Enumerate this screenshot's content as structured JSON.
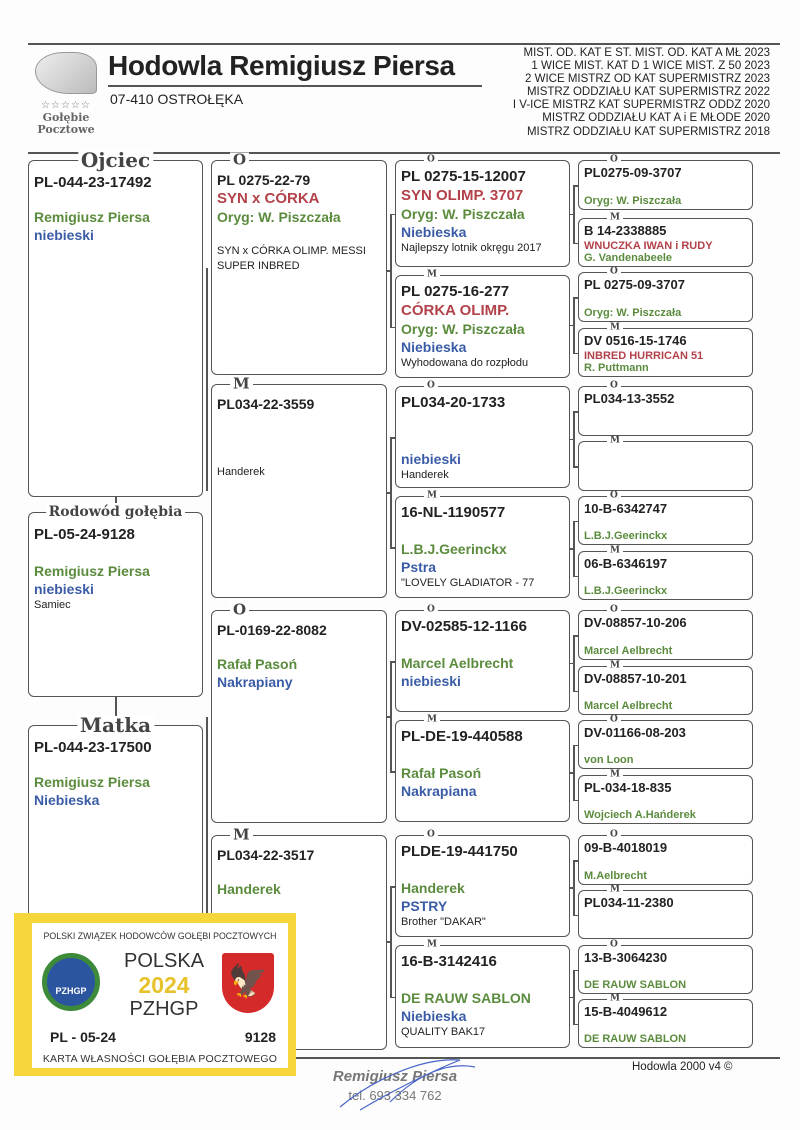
{
  "header": {
    "title": "Hodowla Remigiusz Piersa",
    "city": "07-410 OSTROŁĘKA",
    "logo": {
      "stars": "☆☆☆☆☆",
      "line1": "Gołębie",
      "line2": "Pocztowe"
    },
    "achievements": [
      "MIST. OD. KAT  E ST. MIST. OD. KAT A  MŁ 2023",
      "1 WICE MIST. KAT D 1 WICE MIST. Z 50 2023",
      "2 WICE MISTRZ OD KAT SUPERMISTRZ 2023",
      "MISTRZ ODDZIAŁU KAT SUPERMISTRZ 2022",
      "I V-ICE MISTRZ KAT SUPERMISTRZ ODDZ 2020",
      "MISTRZ ODDZIAŁU KAT  A i E MŁODE 2020",
      "MISTRZ ODDZIAŁU KAT SUPERMISTRZ 2018"
    ]
  },
  "colors": {
    "red": "#b3414a",
    "green": "#5b8c3e",
    "blue": "#3a5ca6",
    "card": "#f6d63a"
  },
  "gen1": [
    {
      "legend": "Ojciec",
      "ring": "PL-044-23-17492",
      "lines": [
        {
          "t": "Remigiusz Piersa",
          "c": "green"
        },
        {
          "t": "niebieski",
          "c": "blue"
        }
      ]
    },
    {
      "legend": "Rodowód gołębia",
      "ring": "PL-05-24-9128",
      "lines": [
        {
          "t": "Remigiusz Piersa",
          "c": "green"
        },
        {
          "t": "niebieski",
          "c": "blue"
        },
        {
          "t": "Samiec",
          "c": "note"
        }
      ]
    },
    {
      "legend": "Matka",
      "ring": "PL-044-23-17500",
      "lines": [
        {
          "t": "Remigiusz Piersa",
          "c": "green"
        },
        {
          "t": "Niebieska",
          "c": "blue"
        }
      ]
    }
  ],
  "gen2": [
    {
      "legend": "O",
      "ring": "PL 0275-22-79",
      "lines": [
        {
          "t": "SYN x CÓRKA",
          "c": "red"
        },
        {
          "t": "Oryg: W. Piszczała",
          "c": "green"
        },
        {
          "t": "SYN x CÓRKA OLIMP. MESSI",
          "c": "note"
        },
        {
          "t": "SUPER INBRED",
          "c": "note"
        }
      ]
    },
    {
      "legend": "M",
      "ring": "PL034-22-3559",
      "lines": [
        {
          "t": "Handerek",
          "c": "note"
        }
      ]
    },
    {
      "legend": "O",
      "ring": "PL-0169-22-8082",
      "lines": [
        {
          "t": "Rafał Pasoń",
          "c": "green"
        },
        {
          "t": "Nakrapiany",
          "c": "blue"
        }
      ]
    },
    {
      "legend": "M",
      "ring": "PL034-22-3517",
      "lines": [
        {
          "t": "Handerek",
          "c": "green"
        }
      ]
    }
  ],
  "gen3": [
    {
      "legend": "O",
      "ring": "PL 0275-15-12007",
      "lines": [
        {
          "t": "SYN OLIMP. 3707",
          "c": "red"
        },
        {
          "t": "Oryg: W. Piszczała",
          "c": "green"
        },
        {
          "t": "Niebieska",
          "c": "blue"
        },
        {
          "t": "Najlepszy lotnik okręgu 2017",
          "c": "note"
        }
      ]
    },
    {
      "legend": "M",
      "ring": "PL 0275-16-277",
      "lines": [
        {
          "t": "CÓRKA OLIMP.",
          "c": "red"
        },
        {
          "t": "Oryg: W. Piszczała",
          "c": "green"
        },
        {
          "t": "Niebieska",
          "c": "blue"
        },
        {
          "t": "Wyhodowana do rozpłodu",
          "c": "note"
        }
      ]
    },
    {
      "legend": "O",
      "ring": "PL034-20-1733",
      "lines": [
        {
          "t": "niebieski",
          "c": "blue"
        },
        {
          "t": "Handerek",
          "c": "note"
        }
      ]
    },
    {
      "legend": "M",
      "ring": "16-NL-1190577",
      "lines": [
        {
          "t": "L.B.J.Geerinckx",
          "c": "green"
        },
        {
          "t": "Pstra",
          "c": "blue"
        },
        {
          "t": "\"LOVELY GLADIATOR - 77",
          "c": "note"
        }
      ]
    },
    {
      "legend": "O",
      "ring": "DV-02585-12-1166",
      "lines": [
        {
          "t": "Marcel Aelbrecht",
          "c": "green"
        },
        {
          "t": "niebieski",
          "c": "blue"
        }
      ]
    },
    {
      "legend": "M",
      "ring": "PL-DE-19-440588",
      "lines": [
        {
          "t": "Rafał Pasoń",
          "c": "green"
        },
        {
          "t": "Nakrapiana",
          "c": "blue"
        }
      ]
    },
    {
      "legend": "O",
      "ring": "PLDE-19-441750",
      "lines": [
        {
          "t": "Handerek",
          "c": "green"
        },
        {
          "t": "PSTRY",
          "c": "blue"
        },
        {
          "t": "Brother \"DAKAR\"",
          "c": "note"
        }
      ]
    },
    {
      "legend": "M",
      "ring": "16-B-3142416",
      "lines": [
        {
          "t": "DE RAUW SABLON",
          "c": "green"
        },
        {
          "t": "Niebieska",
          "c": "blue"
        },
        {
          "t": "QUALITY BAK17",
          "c": "note"
        }
      ]
    }
  ],
  "gen4": [
    {
      "legend": "O",
      "ring": "PL0275-09-3707",
      "lines": [
        {
          "t": "Oryg: W. Piszczała",
          "c": "green"
        }
      ]
    },
    {
      "legend": "M",
      "ring": "B 14-2338885",
      "lines": [
        {
          "t": "WNUCZKA IWAN i RUDY",
          "c": "red"
        },
        {
          "t": "G. Vandenabeele",
          "c": "green"
        }
      ]
    },
    {
      "legend": "O",
      "ring": "PL 0275-09-3707",
      "lines": [
        {
          "t": "Oryg: W. Piszczała",
          "c": "green"
        }
      ]
    },
    {
      "legend": "M",
      "ring": "DV 0516-15-1746",
      "lines": [
        {
          "t": "INBRED HURRICAN 51",
          "c": "red"
        },
        {
          "t": "R. Puttmann",
          "c": "green"
        }
      ]
    },
    {
      "legend": "O",
      "ring": "PL034-13-3552",
      "lines": []
    },
    {
      "legend": "M",
      "ring": "",
      "lines": []
    },
    {
      "legend": "O",
      "ring": "10-B-6342747",
      "lines": [
        {
          "t": "L.B.J.Geerinckx",
          "c": "green"
        }
      ]
    },
    {
      "legend": "M",
      "ring": "06-B-6346197",
      "lines": [
        {
          "t": "L.B.J.Geerinckx",
          "c": "green"
        }
      ]
    },
    {
      "legend": "O",
      "ring": "DV-08857-10-206",
      "lines": [
        {
          "t": "Marcel Aelbrecht",
          "c": "green"
        }
      ]
    },
    {
      "legend": "M",
      "ring": "DV-08857-10-201",
      "lines": [
        {
          "t": "Marcel Aelbrecht",
          "c": "green"
        }
      ]
    },
    {
      "legend": "O",
      "ring": "DV-01166-08-203",
      "lines": [
        {
          "t": "von Loon",
          "c": "green"
        }
      ]
    },
    {
      "legend": "M",
      "ring": "PL-034-18-835",
      "lines": [
        {
          "t": "Wojciech A.Hańderek",
          "c": "green"
        }
      ]
    },
    {
      "legend": "O",
      "ring": "09-B-4018019",
      "lines": [
        {
          "t": "M.Aelbrecht",
          "c": "green"
        }
      ]
    },
    {
      "legend": "M",
      "ring": "PL034-11-2380",
      "lines": []
    },
    {
      "legend": "O",
      "ring": "13-B-3064230",
      "lines": [
        {
          "t": "DE RAUW SABLON",
          "c": "green"
        }
      ]
    },
    {
      "legend": "M",
      "ring": "15-B-4049612",
      "lines": [
        {
          "t": "DE RAUW SABLON",
          "c": "green"
        }
      ]
    }
  ],
  "card": {
    "header": "POLSKI ZWIĄZEK HODOWCÓW GOŁĘBI POCZTOWYCH",
    "emblem": "PZHGP",
    "country": "POLSKA",
    "year": "2024",
    "org": "PZHGP",
    "ring_left": "PL - 05-24",
    "ring_right": "9128",
    "footer": "KARTA  WŁASNOŚCI GOŁĘBIA POCZTOWEGO"
  },
  "footer": {
    "name": "Remigiusz Piersa",
    "phone": "tel. 693 334 762",
    "software": "Hodowla 2000 v4 ©"
  }
}
